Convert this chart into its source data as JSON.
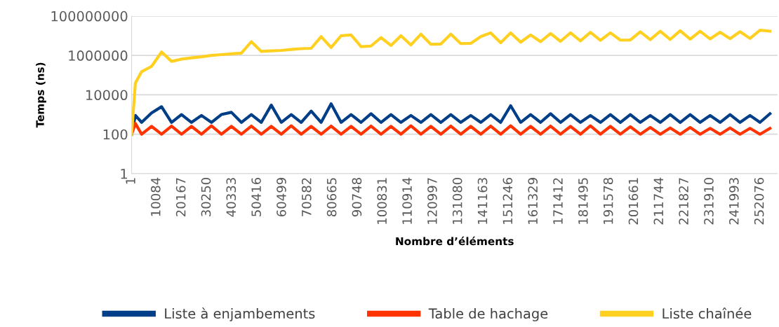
{
  "chart_data": {
    "type": "line",
    "xlabel": "Nombre d’éléments",
    "ylabel": "Temps (ns)",
    "log": "y",
    "grid": "y",
    "legend": "bottom",
    "line_style": "solid",
    "marker": "none",
    "x": [
      1,
      1500,
      4000,
      8000,
      12000,
      16000,
      20000,
      24000,
      28000,
      32000,
      36000,
      40000,
      44000,
      48000,
      52000,
      56000,
      60000,
      64000,
      68000,
      72000,
      76000,
      80000,
      84000,
      88000,
      92000,
      96000,
      100000,
      104000,
      108000,
      112000,
      116000,
      120000,
      124000,
      128000,
      132000,
      136000,
      140000,
      144000,
      148000,
      152000,
      156000,
      160000,
      164000,
      168000,
      172000,
      176000,
      180000,
      184000,
      188000,
      192000,
      196000,
      200000,
      204000,
      208000,
      212000,
      216000,
      220000,
      224000,
      228000,
      232000,
      236000,
      240000,
      244000,
      248000,
      252000,
      256000
    ],
    "xlim": [
      1,
      259000
    ],
    "xticks": [
      1,
      10084,
      20167,
      30250,
      40333,
      50416,
      60499,
      70582,
      80665,
      90748,
      100831,
      110914,
      120997,
      131080,
      141163,
      151246,
      161329,
      171412,
      181495,
      191578,
      201661,
      211744,
      221827,
      231910,
      241993,
      252076
    ],
    "ylim": [
      1,
      100000000
    ],
    "yticks": [
      1,
      100,
      10000,
      1000000,
      100000000
    ],
    "series": [
      {
        "name": "Liste à enjambements",
        "color": "#003f88",
        "values": [
          100,
          900,
          400,
          1200,
          2500,
          400,
          1000,
          400,
          900,
          400,
          1000,
          1300,
          400,
          1000,
          400,
          3000,
          400,
          1000,
          400,
          1500,
          400,
          3500,
          400,
          1000,
          400,
          1100,
          400,
          1000,
          400,
          900,
          400,
          1000,
          400,
          1000,
          400,
          900,
          400,
          1000,
          400,
          2800,
          400,
          1000,
          400,
          1100,
          400,
          1000,
          400,
          900,
          400,
          1000,
          400,
          1000,
          400,
          900,
          400,
          1000,
          400,
          1000,
          400,
          900,
          400,
          1000,
          400,
          900,
          400,
          1100
        ]
      },
      {
        "name": "Table de hachage",
        "color": "#ff3300",
        "values": [
          100,
          350,
          100,
          250,
          100,
          260,
          100,
          250,
          100,
          270,
          100,
          250,
          100,
          260,
          100,
          250,
          100,
          270,
          100,
          250,
          100,
          260,
          100,
          250,
          100,
          260,
          100,
          250,
          100,
          270,
          100,
          250,
          100,
          260,
          100,
          250,
          100,
          260,
          100,
          270,
          100,
          250,
          100,
          260,
          100,
          250,
          100,
          270,
          100,
          250,
          100,
          240,
          100,
          220,
          100,
          210,
          100,
          220,
          100,
          200,
          100,
          210,
          100,
          200,
          100,
          200
        ]
      },
      {
        "name": "Liste chaînée",
        "color": "#ffd020",
        "values": [
          100,
          40000,
          150000,
          280000,
          1500000,
          500000,
          650000,
          750000,
          850000,
          1000000,
          1100000,
          1200000,
          1300000,
          5000000,
          1600000,
          1700000,
          1800000,
          2000000,
          2200000,
          2300000,
          9000000,
          2500000,
          10000000,
          11000000,
          2800000,
          3000000,
          8000000,
          3200000,
          10000000,
          3400000,
          12000000,
          3700000,
          3800000,
          12000000,
          4000000,
          4100000,
          9000000,
          14000000,
          4400000,
          14000000,
          4700000,
          11000000,
          5000000,
          13000000,
          5200000,
          14000000,
          5500000,
          15000000,
          5800000,
          14000000,
          6000000,
          6100000,
          16000000,
          6300000,
          17000000,
          6500000,
          18000000,
          6700000,
          17000000,
          6900000,
          15000000,
          7100000,
          16000000,
          7300000,
          19000000,
          17000000
        ]
      }
    ]
  }
}
